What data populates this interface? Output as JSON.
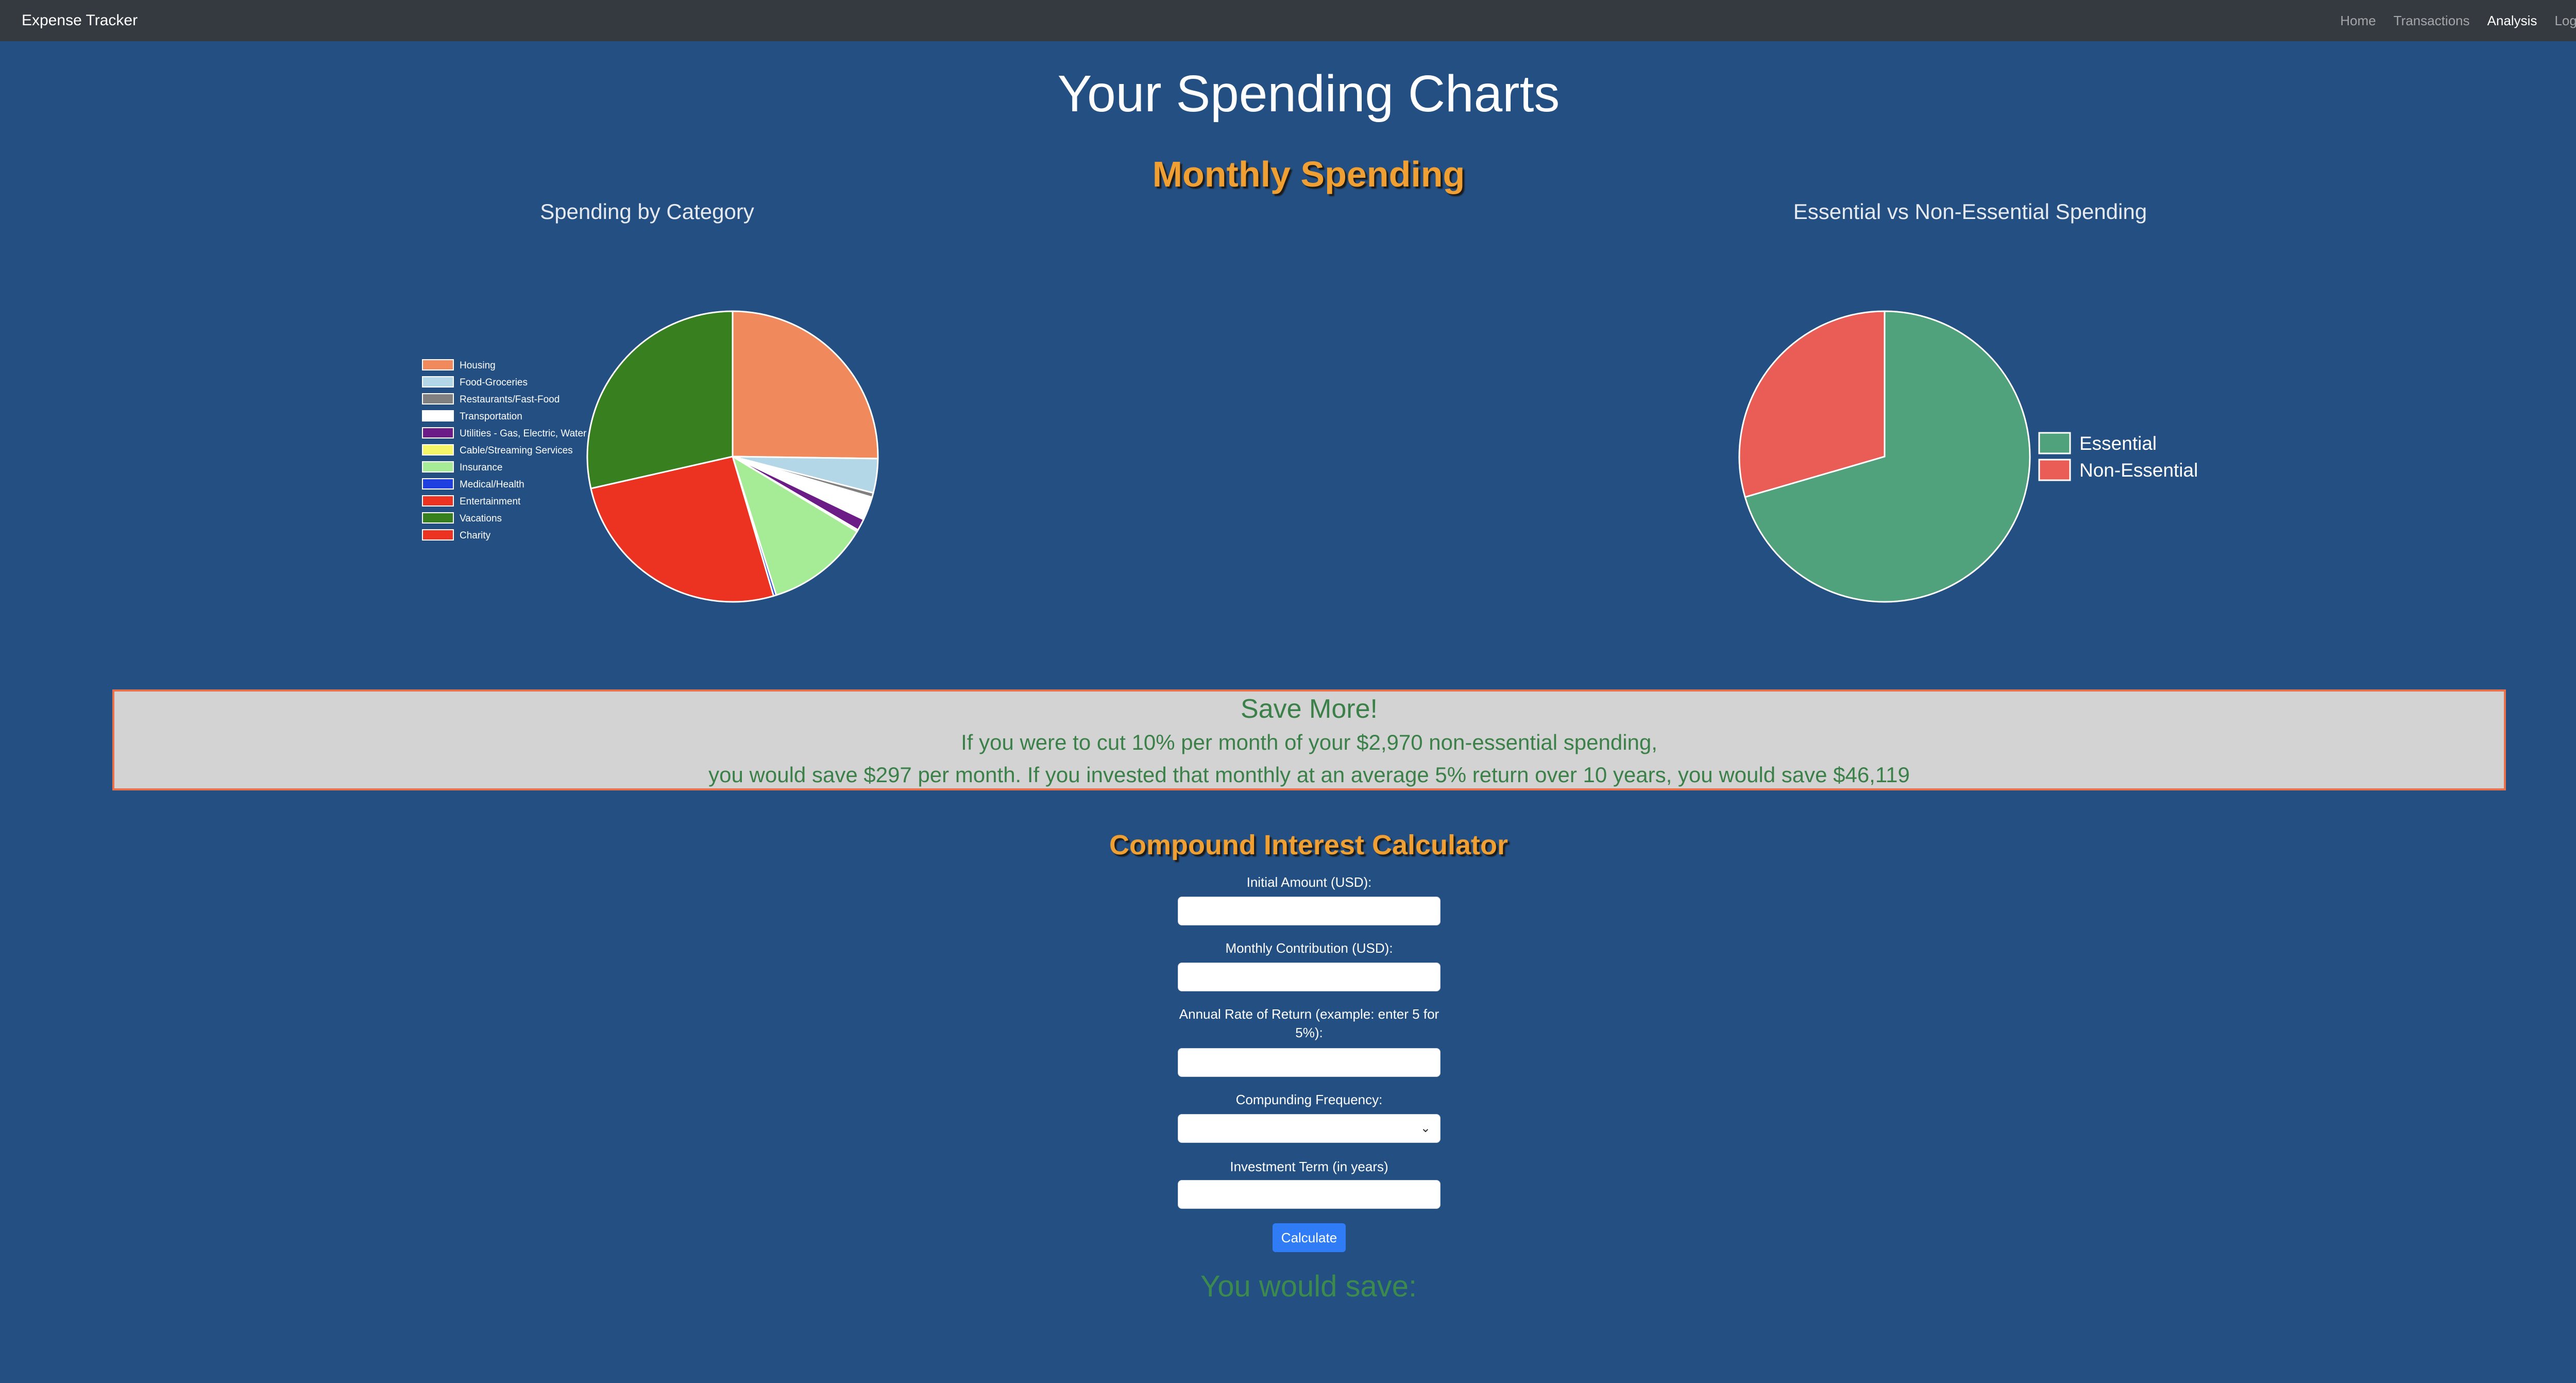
{
  "navbar": {
    "brand": "Expense Tracker",
    "links": [
      {
        "label": "Home",
        "active": false
      },
      {
        "label": "Transactions",
        "active": false
      },
      {
        "label": "Analysis",
        "active": true
      },
      {
        "label": "Logout",
        "active": false
      }
    ]
  },
  "page_title": "Your Spending Charts",
  "monthly_title": "Monthly Spending",
  "chart_data": [
    {
      "type": "pie",
      "title": "Spending by Category",
      "legend_position": "left",
      "series": [
        {
          "values": [
            25.2,
            3.8,
            0.5,
            2.6,
            1.3,
            0.2,
            11.5,
            0.3,
            0.1,
            28.5,
            26.0
          ]
        }
      ],
      "categories": [
        "Housing",
        "Food-Groceries",
        "Restaurants/Fast-Food",
        "Transportation",
        "Utilities - Gas, Electric, Water",
        "Cable/Streaming Services",
        "Insurance",
        "Medical/Health",
        "Entertainment",
        "Vacations",
        "Charity"
      ],
      "colors": [
        "#f08a5d",
        "#b3d7e6",
        "#808080",
        "#ffffff",
        "#6b1c86",
        "#f5f56a",
        "#a6ec96",
        "#1f3fe0",
        "#ec3322",
        "#377f1f",
        "#ec3322"
      ],
      "draw_order": [
        0,
        1,
        2,
        3,
        4,
        5,
        6,
        7,
        10,
        9
      ],
      "draw_colors": [
        "#f08a5d",
        "#b3d7e6",
        "#808080",
        "#ffffff",
        "#6b1c86",
        "#f5f56a",
        "#a6ec96",
        "#1f3fe0",
        "#ec3322",
        "#377f1f"
      ]
    },
    {
      "type": "pie",
      "title": "Essential vs Non-Essential Spending",
      "legend_position": "right",
      "categories": [
        "Essential",
        "Non-Essential"
      ],
      "series": [
        {
          "values": [
            70.5,
            29.5
          ]
        }
      ],
      "colors": [
        "#50a27c",
        "#ea5d57"
      ]
    }
  ],
  "save_box": {
    "heading": "Save More!",
    "line1": "If you were to cut 10% per month of your $2,970 non-essential spending,",
    "line2": "you would save $297 per month. If you invested that monthly at an average 5% return over 10 years, you would save $46,119"
  },
  "calculator": {
    "title": "Compound Interest Calculator",
    "initial_label": "Initial Amount (USD):",
    "initial_value": "",
    "monthly_label": "Monthly Contribution (USD):",
    "monthly_value": "",
    "rate_label_line1": "Annual Rate of Return (example: enter 5 for",
    "rate_label_line2": "5%):",
    "rate_value": "",
    "frequency_label": "Compunding Frequency:",
    "frequency_value": "",
    "term_label": "Investment Term (in years)",
    "term_value": "",
    "button_label": "Calculate",
    "result_text": "You would save:"
  }
}
